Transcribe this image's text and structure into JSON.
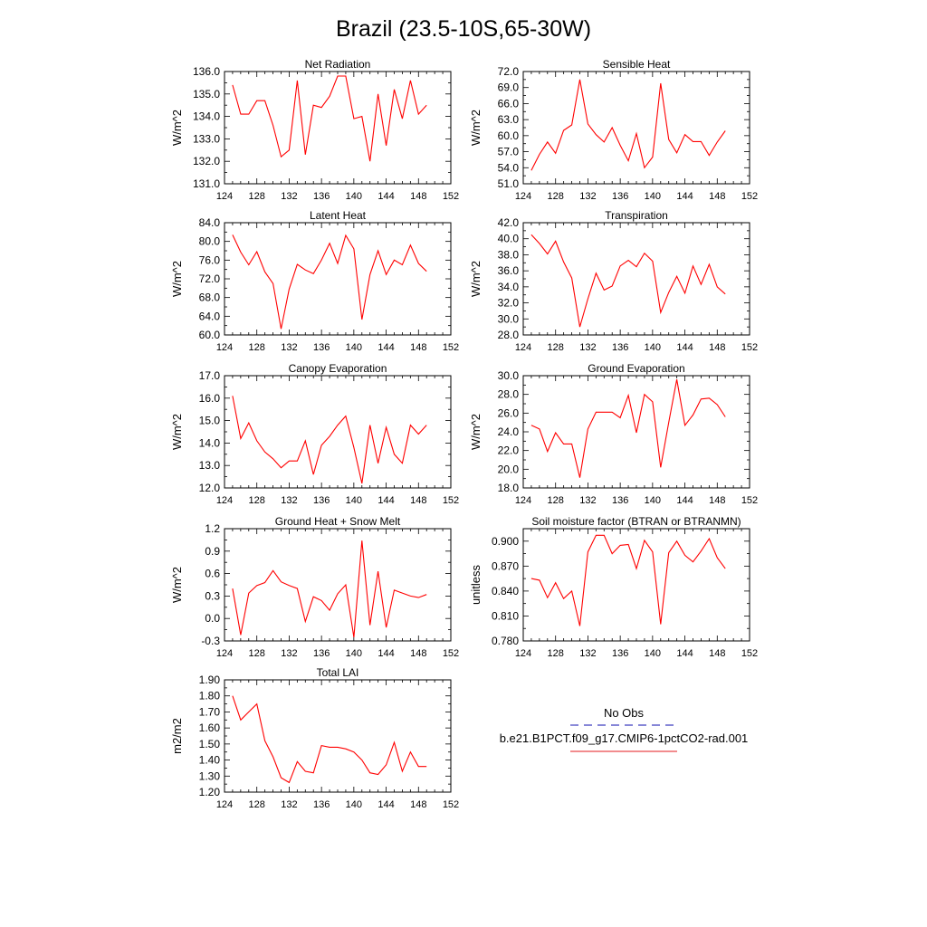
{
  "title": "Brazil (23.5-10S,65-30W)",
  "legend": {
    "obs_label": "No Obs",
    "model_label": "b.e21.B1PCT.f09_g17.CMIP6-1pctCO2-rad.001",
    "obs_color": "#3f3fbf",
    "model_color": "#e41a1c"
  },
  "line_color": "#ff0000",
  "chart_data": [
    {
      "type": "line",
      "title": "Net Radiation",
      "ylabel": "W/m^2",
      "xlim": [
        124,
        152
      ],
      "ylim": [
        131,
        136
      ],
      "xticks": [
        124,
        128,
        132,
        136,
        140,
        144,
        148,
        152
      ],
      "yticks": [
        "131.0",
        "132.0",
        "133.0",
        "134.0",
        "135.0",
        "136.0"
      ],
      "x": [
        125,
        126,
        127,
        128,
        129,
        130,
        131,
        132,
        133,
        134,
        135,
        136,
        137,
        138,
        139,
        140,
        141,
        142,
        143,
        144,
        145,
        146,
        147,
        148,
        149
      ],
      "y": [
        135.4,
        134.1,
        134.1,
        134.7,
        134.7,
        133.6,
        132.2,
        132.5,
        135.6,
        132.3,
        134.5,
        134.4,
        134.9,
        135.8,
        135.8,
        133.9,
        134.0,
        132.0,
        135.0,
        132.7,
        135.2,
        133.9,
        135.6,
        134.1,
        134.5
      ]
    },
    {
      "type": "line",
      "title": "Sensible Heat",
      "ylabel": "W/m^2",
      "xlim": [
        124,
        152
      ],
      "ylim": [
        51,
        72
      ],
      "xticks": [
        124,
        128,
        132,
        136,
        140,
        144,
        148,
        152
      ],
      "yticks": [
        "51.0",
        "54.0",
        "57.0",
        "60.0",
        "63.0",
        "66.0",
        "69.0",
        "72.0"
      ],
      "x": [
        125,
        126,
        127,
        128,
        129,
        130,
        131,
        132,
        133,
        134,
        135,
        136,
        137,
        138,
        139,
        140,
        141,
        142,
        143,
        144,
        145,
        146,
        147,
        148,
        149
      ],
      "y": [
        53.5,
        56.5,
        58.8,
        56.7,
        61.0,
        62.0,
        70.5,
        62.2,
        60.2,
        58.8,
        61.5,
        58.2,
        55.3,
        60.4,
        54.0,
        56.0,
        69.8,
        59.3,
        56.8,
        60.2,
        58.9,
        58.9,
        56.3,
        58.8,
        60.9
      ]
    },
    {
      "type": "line",
      "title": "Latent Heat",
      "ylabel": "W/m^2",
      "xlim": [
        124,
        152
      ],
      "ylim": [
        60,
        84
      ],
      "xticks": [
        124,
        128,
        132,
        136,
        140,
        144,
        148,
        152
      ],
      "yticks": [
        "60.0",
        "64.0",
        "68.0",
        "72.0",
        "76.0",
        "80.0",
        "84.0"
      ],
      "x": [
        125,
        126,
        127,
        128,
        129,
        130,
        131,
        132,
        133,
        134,
        135,
        136,
        137,
        138,
        139,
        140,
        141,
        142,
        143,
        144,
        145,
        146,
        147,
        148,
        149
      ],
      "y": [
        81.4,
        77.7,
        75.0,
        77.8,
        73.5,
        71.0,
        61.3,
        69.8,
        75.1,
        73.9,
        73.1,
        76.0,
        79.6,
        75.3,
        81.3,
        78.4,
        63.3,
        72.9,
        78.0,
        72.9,
        76.0,
        75.0,
        79.2,
        75.3,
        73.6
      ]
    },
    {
      "type": "line",
      "title": "Transpiration",
      "ylabel": "W/m^2",
      "xlim": [
        124,
        152
      ],
      "ylim": [
        28,
        42
      ],
      "xticks": [
        124,
        128,
        132,
        136,
        140,
        144,
        148,
        152
      ],
      "yticks": [
        "28.0",
        "30.0",
        "32.0",
        "34.0",
        "36.0",
        "38.0",
        "40.0",
        "42.0"
      ],
      "x": [
        125,
        126,
        127,
        128,
        129,
        130,
        131,
        132,
        133,
        134,
        135,
        136,
        137,
        138,
        139,
        140,
        141,
        142,
        143,
        144,
        145,
        146,
        147,
        148,
        149
      ],
      "y": [
        40.5,
        39.4,
        38.1,
        39.7,
        37.1,
        35.1,
        29.0,
        32.5,
        35.7,
        33.6,
        34.1,
        36.6,
        37.3,
        36.5,
        38.2,
        37.2,
        30.8,
        33.3,
        35.3,
        33.2,
        36.6,
        34.3,
        36.8,
        34.0,
        33.1
      ]
    },
    {
      "type": "line",
      "title": "Canopy Evaporation",
      "ylabel": "W/m^2",
      "xlim": [
        124,
        152
      ],
      "ylim": [
        12,
        17
      ],
      "xticks": [
        124,
        128,
        132,
        136,
        140,
        144,
        148,
        152
      ],
      "yticks": [
        "12.0",
        "13.0",
        "14.0",
        "15.0",
        "16.0",
        "17.0"
      ],
      "x": [
        125,
        126,
        127,
        128,
        129,
        130,
        131,
        132,
        133,
        134,
        135,
        136,
        137,
        138,
        139,
        140,
        141,
        142,
        143,
        144,
        145,
        146,
        147,
        148,
        149
      ],
      "y": [
        16.1,
        14.2,
        14.9,
        14.1,
        13.6,
        13.3,
        12.9,
        13.2,
        13.2,
        14.1,
        12.6,
        13.9,
        14.3,
        14.8,
        15.2,
        13.8,
        12.2,
        14.8,
        13.1,
        14.7,
        13.5,
        13.1,
        14.8,
        14.4,
        14.8
      ]
    },
    {
      "type": "line",
      "title": "Ground Evaporation",
      "ylabel": "W/m^2",
      "xlim": [
        124,
        152
      ],
      "ylim": [
        18,
        30
      ],
      "xticks": [
        124,
        128,
        132,
        136,
        140,
        144,
        148,
        152
      ],
      "yticks": [
        "18.0",
        "20.0",
        "22.0",
        "24.0",
        "26.0",
        "28.0",
        "30.0"
      ],
      "x": [
        125,
        126,
        127,
        128,
        129,
        130,
        131,
        132,
        133,
        134,
        135,
        136,
        137,
        138,
        139,
        140,
        141,
        142,
        143,
        144,
        145,
        146,
        147,
        148,
        149
      ],
      "y": [
        24.7,
        24.3,
        21.9,
        23.9,
        22.7,
        22.7,
        19.1,
        24.3,
        26.1,
        26.1,
        26.1,
        25.5,
        27.9,
        23.9,
        28.0,
        27.2,
        20.2,
        25.0,
        29.6,
        24.7,
        25.8,
        27.5,
        27.6,
        26.9,
        25.6
      ]
    },
    {
      "type": "line",
      "title": "Ground Heat + Snow Melt",
      "ylabel": "W/m^2",
      "xlim": [
        124,
        152
      ],
      "ylim": [
        -0.3,
        1.2
      ],
      "xticks": [
        124,
        128,
        132,
        136,
        140,
        144,
        148,
        152
      ],
      "yticks": [
        "-0.3",
        "0.0",
        "0.3",
        "0.6",
        "0.9",
        "1.2"
      ],
      "x": [
        125,
        126,
        127,
        128,
        129,
        130,
        131,
        132,
        133,
        134,
        135,
        136,
        137,
        138,
        139,
        140,
        141,
        142,
        143,
        144,
        145,
        146,
        147,
        148,
        149
      ],
      "y": [
        0.4,
        -0.22,
        0.34,
        0.44,
        0.48,
        0.64,
        0.49,
        0.44,
        0.4,
        -0.04,
        0.29,
        0.24,
        0.11,
        0.33,
        0.45,
        -0.25,
        1.04,
        -0.09,
        0.63,
        -0.12,
        0.38,
        0.34,
        0.3,
        0.28,
        0.32
      ]
    },
    {
      "type": "line",
      "title": "Soil moisture factor (BTRAN or BTRANMN)",
      "ylabel": "unitless",
      "xlim": [
        124,
        152
      ],
      "ylim": [
        0.78,
        0.915
      ],
      "xticks": [
        124,
        128,
        132,
        136,
        140,
        144,
        148,
        152
      ],
      "yticks": [
        "0.780",
        "0.810",
        "0.840",
        "0.870",
        "0.900"
      ],
      "x": [
        125,
        126,
        127,
        128,
        129,
        130,
        131,
        132,
        133,
        134,
        135,
        136,
        137,
        138,
        139,
        140,
        141,
        142,
        143,
        144,
        145,
        146,
        147,
        148,
        149
      ],
      "y": [
        0.855,
        0.853,
        0.832,
        0.85,
        0.831,
        0.84,
        0.798,
        0.887,
        0.907,
        0.907,
        0.885,
        0.895,
        0.896,
        0.867,
        0.901,
        0.887,
        0.8,
        0.886,
        0.9,
        0.883,
        0.875,
        0.888,
        0.903,
        0.88,
        0.867
      ]
    },
    {
      "type": "line",
      "title": "Total LAI",
      "ylabel": "m2/m2",
      "xlim": [
        124,
        152
      ],
      "ylim": [
        1.2,
        1.9
      ],
      "xticks": [
        124,
        128,
        132,
        136,
        140,
        144,
        148,
        152
      ],
      "yticks": [
        "1.20",
        "1.30",
        "1.40",
        "1.50",
        "1.60",
        "1.70",
        "1.80",
        "1.90"
      ],
      "x": [
        125,
        126,
        127,
        128,
        129,
        130,
        131,
        132,
        133,
        134,
        135,
        136,
        137,
        138,
        139,
        140,
        141,
        142,
        143,
        144,
        145,
        146,
        147,
        148,
        149
      ],
      "y": [
        1.8,
        1.65,
        1.7,
        1.75,
        1.52,
        1.42,
        1.29,
        1.26,
        1.39,
        1.33,
        1.32,
        1.49,
        1.48,
        1.48,
        1.47,
        1.45,
        1.4,
        1.32,
        1.31,
        1.37,
        1.51,
        1.33,
        1.45,
        1.36,
        1.36
      ]
    }
  ]
}
